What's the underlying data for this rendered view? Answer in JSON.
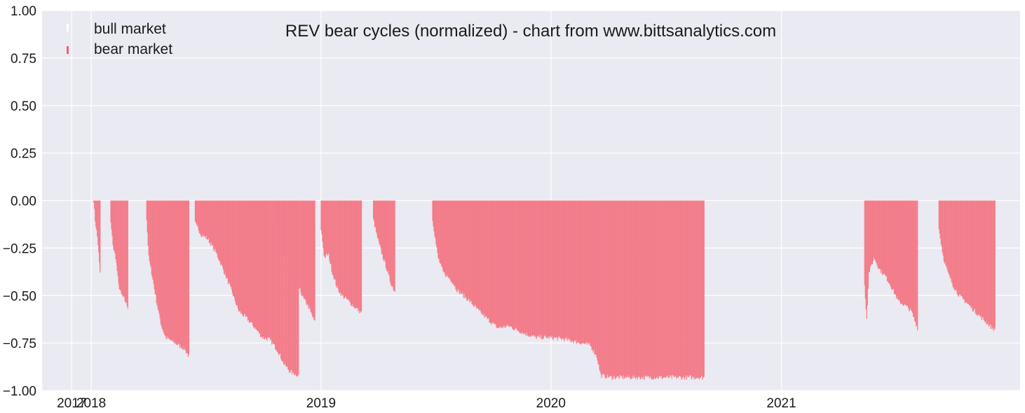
{
  "chart_data": {
    "type": "bar",
    "title": "REV bear cycles (normalized)  - chart from www.bittsanalytics.com",
    "xlabel": "",
    "ylabel": "",
    "ylim": [
      -1.0,
      1.0
    ],
    "xlim": [
      "2017-10-15",
      "2022-01-15"
    ],
    "grid": true,
    "legend_position": "top-left",
    "yticks": [
      {
        "value": 1.0,
        "label": "1.00"
      },
      {
        "value": 0.75,
        "label": "0.75"
      },
      {
        "value": 0.5,
        "label": "0.50"
      },
      {
        "value": 0.25,
        "label": "0.25"
      },
      {
        "value": 0.0,
        "label": "0.00"
      },
      {
        "value": -0.25,
        "label": "−0.25"
      },
      {
        "value": -0.5,
        "label": "−0.50"
      },
      {
        "value": -0.75,
        "label": "−0.75"
      },
      {
        "value": -1.0,
        "label": "−1.00"
      }
    ],
    "xticks": [
      {
        "date": "2017-12-01",
        "label": "2017"
      },
      {
        "date": "2018-01-01",
        "label": "2018"
      },
      {
        "date": "2019-01-01",
        "label": "2019"
      },
      {
        "date": "2020-01-01",
        "label": "2020"
      },
      {
        "date": "2021-01-01",
        "label": "2021"
      }
    ],
    "legend": [
      {
        "label": "bull market",
        "color": "#ffffff"
      },
      {
        "label": "bear market",
        "color": "#f0606e"
      }
    ],
    "colors": {
      "bear": "#f47f8d",
      "bear_edge": "#e8707c",
      "background": "#eaeaf2",
      "grid": "#ffffff"
    },
    "series": [
      {
        "name": "bear market",
        "points": [
          [
            "2018-01-05",
            0.0
          ],
          [
            "2018-01-06",
            -0.1
          ],
          [
            "2018-01-10",
            -0.2
          ],
          [
            "2018-01-15",
            -0.38
          ],
          [
            "2018-01-12",
            -0.38
          ],
          [
            "2018-02-01",
            -0.2
          ],
          [
            "2018-02-03",
            -0.25
          ],
          [
            "2018-02-06",
            -0.3
          ],
          [
            "2018-02-10",
            -0.44
          ],
          [
            "2018-02-15",
            -0.49
          ],
          [
            "2018-02-22",
            -0.52
          ],
          [
            "2018-02-28",
            -0.56
          ],
          [
            "2018-03-30",
            -0.15
          ],
          [
            "2018-04-03",
            -0.3
          ],
          [
            "2018-04-08",
            -0.4
          ],
          [
            "2018-04-15",
            -0.52
          ],
          [
            "2018-04-22",
            -0.63
          ],
          [
            "2018-04-28",
            -0.72
          ],
          [
            "2018-05-05",
            -0.74
          ],
          [
            "2018-05-15",
            -0.76
          ],
          [
            "2018-05-25",
            -0.78
          ],
          [
            "2018-06-05",
            -0.82
          ],
          [
            "2018-06-15",
            -0.15
          ],
          [
            "2018-06-25",
            -0.19
          ],
          [
            "2018-07-05",
            -0.2
          ],
          [
            "2018-07-15",
            -0.27
          ],
          [
            "2018-07-25",
            -0.35
          ],
          [
            "2018-08-05",
            -0.47
          ],
          [
            "2018-08-15",
            -0.58
          ],
          [
            "2018-08-25",
            -0.62
          ],
          [
            "2018-09-05",
            -0.67
          ],
          [
            "2018-09-15",
            -0.72
          ],
          [
            "2018-09-25",
            -0.72
          ],
          [
            "2018-10-05",
            -0.75
          ],
          [
            "2018-10-15",
            -0.82
          ],
          [
            "2018-10-25",
            -0.87
          ],
          [
            "2018-11-05",
            -0.91
          ],
          [
            "2018-11-15",
            -0.89
          ],
          [
            "2018-11-26",
            -0.92
          ],
          [
            "2018-10-21",
            -0.12
          ],
          [
            "2018-10-28",
            -0.22
          ],
          [
            "2018-11-04",
            -0.33
          ],
          [
            "2018-11-11",
            -0.38
          ],
          [
            "2018-11-18",
            -0.45
          ],
          [
            "2018-11-25",
            -0.47
          ],
          [
            "2018-12-02",
            -0.52
          ],
          [
            "2018-12-09",
            -0.55
          ],
          [
            "2018-12-16",
            -0.6
          ],
          [
            "2018-12-22",
            -0.64
          ],
          [
            "2019-01-01",
            -0.2
          ],
          [
            "2019-01-06",
            -0.3
          ],
          [
            "2019-01-12",
            -0.28
          ],
          [
            "2019-01-19",
            -0.38
          ],
          [
            "2019-01-26",
            -0.46
          ],
          [
            "2019-02-03",
            -0.5
          ],
          [
            "2019-02-10",
            -0.52
          ],
          [
            "2019-02-18",
            -0.55
          ],
          [
            "2019-02-25",
            -0.57
          ],
          [
            "2019-03-06",
            -0.59
          ],
          [
            "2019-03-25",
            -0.13
          ],
          [
            "2019-04-01",
            -0.2
          ],
          [
            "2019-04-08",
            -0.28
          ],
          [
            "2019-04-15",
            -0.35
          ],
          [
            "2019-04-22",
            -0.43
          ],
          [
            "2019-04-28",
            -0.48
          ],
          [
            "2019-06-27",
            -0.15
          ],
          [
            "2019-07-05",
            -0.3
          ],
          [
            "2019-07-15",
            -0.38
          ],
          [
            "2019-07-25",
            -0.42
          ],
          [
            "2019-08-05",
            -0.47
          ],
          [
            "2019-08-20",
            -0.52
          ],
          [
            "2019-09-05",
            -0.58
          ],
          [
            "2019-09-20",
            -0.62
          ],
          [
            "2019-10-05",
            -0.67
          ],
          [
            "2019-10-25",
            -0.66
          ],
          [
            "2019-11-15",
            -0.7
          ],
          [
            "2019-12-05",
            -0.72
          ],
          [
            "2019-12-25",
            -0.72
          ],
          [
            "2020-01-20",
            -0.73
          ],
          [
            "2020-02-10",
            -0.75
          ],
          [
            "2020-02-25",
            -0.76
          ],
          [
            "2020-03-08",
            -0.82
          ],
          [
            "2020-03-14",
            -0.92
          ],
          [
            "2020-04-01",
            -0.93
          ],
          [
            "2020-05-01",
            -0.93
          ],
          [
            "2020-06-01",
            -0.93
          ],
          [
            "2020-07-01",
            -0.93
          ],
          [
            "2020-08-01",
            -0.93
          ],
          [
            "2020-08-31",
            -0.93
          ],
          [
            "2021-05-13",
            -0.45
          ],
          [
            "2021-05-16",
            -0.62
          ],
          [
            "2021-05-20",
            -0.38
          ],
          [
            "2021-05-28",
            -0.3
          ],
          [
            "2021-06-05",
            -0.36
          ],
          [
            "2021-06-15",
            -0.4
          ],
          [
            "2021-06-25",
            -0.46
          ],
          [
            "2021-07-05",
            -0.53
          ],
          [
            "2021-07-15",
            -0.55
          ],
          [
            "2021-07-25",
            -0.58
          ],
          [
            "2021-08-05",
            -0.67
          ],
          [
            "2021-09-08",
            -0.18
          ],
          [
            "2021-09-15",
            -0.3
          ],
          [
            "2021-09-22",
            -0.38
          ],
          [
            "2021-10-01",
            -0.45
          ],
          [
            "2021-10-10",
            -0.5
          ],
          [
            "2021-10-20",
            -0.53
          ],
          [
            "2021-11-01",
            -0.57
          ],
          [
            "2021-11-10",
            -0.6
          ],
          [
            "2021-11-20",
            -0.63
          ],
          [
            "2021-11-29",
            -0.66
          ],
          [
            "2021-12-06",
            -0.68
          ]
        ]
      }
    ],
    "segments": [
      {
        "start": "2018-01-05",
        "end": "2018-01-15",
        "depth": [
          [
            0,
            0.0
          ],
          [
            0.2,
            -0.1
          ],
          [
            0.6,
            -0.2
          ],
          [
            1.0,
            -0.38
          ]
        ]
      },
      {
        "start": "2018-02-01",
        "end": "2018-02-28",
        "depth": [
          [
            0,
            -0.12
          ],
          [
            0.15,
            -0.25
          ],
          [
            0.3,
            -0.3
          ],
          [
            0.45,
            -0.44
          ],
          [
            0.6,
            -0.49
          ],
          [
            0.8,
            -0.52
          ],
          [
            1.0,
            -0.56
          ]
        ]
      },
      {
        "start": "2018-03-30",
        "end": "2018-06-05",
        "depth": [
          [
            0,
            -0.1
          ],
          [
            0.05,
            -0.3
          ],
          [
            0.15,
            -0.42
          ],
          [
            0.25,
            -0.55
          ],
          [
            0.35,
            -0.66
          ],
          [
            0.45,
            -0.72
          ],
          [
            0.6,
            -0.74
          ],
          [
            0.75,
            -0.76
          ],
          [
            0.9,
            -0.78
          ],
          [
            1.0,
            -0.82
          ]
        ]
      },
      {
        "start": "2018-06-15",
        "end": "2018-11-26",
        "depth": [
          [
            0,
            -0.12
          ],
          [
            0.06,
            -0.18
          ],
          [
            0.12,
            -0.2
          ],
          [
            0.2,
            -0.27
          ],
          [
            0.27,
            -0.36
          ],
          [
            0.35,
            -0.47
          ],
          [
            0.42,
            -0.58
          ],
          [
            0.5,
            -0.62
          ],
          [
            0.58,
            -0.67
          ],
          [
            0.65,
            -0.72
          ],
          [
            0.72,
            -0.73
          ],
          [
            0.8,
            -0.79
          ],
          [
            0.86,
            -0.86
          ],
          [
            0.92,
            -0.9
          ],
          [
            1.0,
            -0.92
          ]
        ]
      },
      {
        "start": "2018-10-21",
        "end": "2018-12-22",
        "depth": [
          [
            0,
            -0.1
          ],
          [
            0.12,
            -0.22
          ],
          [
            0.25,
            -0.33
          ],
          [
            0.37,
            -0.38
          ],
          [
            0.5,
            -0.45
          ],
          [
            0.62,
            -0.47
          ],
          [
            0.72,
            -0.52
          ],
          [
            0.82,
            -0.55
          ],
          [
            0.92,
            -0.6
          ],
          [
            1.0,
            -0.64
          ]
        ]
      },
      {
        "start": "2019-01-01",
        "end": "2019-03-06",
        "depth": [
          [
            0,
            -0.15
          ],
          [
            0.08,
            -0.3
          ],
          [
            0.18,
            -0.28
          ],
          [
            0.28,
            -0.38
          ],
          [
            0.4,
            -0.46
          ],
          [
            0.52,
            -0.5
          ],
          [
            0.64,
            -0.52
          ],
          [
            0.78,
            -0.55
          ],
          [
            0.88,
            -0.57
          ],
          [
            1.0,
            -0.59
          ]
        ]
      },
      {
        "start": "2019-03-25",
        "end": "2019-04-28",
        "depth": [
          [
            0,
            -0.1
          ],
          [
            0.2,
            -0.2
          ],
          [
            0.4,
            -0.28
          ],
          [
            0.6,
            -0.35
          ],
          [
            0.8,
            -0.43
          ],
          [
            1.0,
            -0.48
          ]
        ]
      },
      {
        "start": "2019-06-27",
        "end": "2020-08-31",
        "depth": [
          [
            0,
            -0.1
          ],
          [
            0.02,
            -0.3
          ],
          [
            0.04,
            -0.38
          ],
          [
            0.07,
            -0.42
          ],
          [
            0.09,
            -0.47
          ],
          [
            0.13,
            -0.52
          ],
          [
            0.17,
            -0.58
          ],
          [
            0.2,
            -0.62
          ],
          [
            0.24,
            -0.67
          ],
          [
            0.28,
            -0.66
          ],
          [
            0.34,
            -0.7
          ],
          [
            0.38,
            -0.72
          ],
          [
            0.43,
            -0.72
          ],
          [
            0.49,
            -0.73
          ],
          [
            0.55,
            -0.75
          ],
          [
            0.58,
            -0.76
          ],
          [
            0.605,
            -0.82
          ],
          [
            0.62,
            -0.92
          ],
          [
            0.66,
            -0.93
          ],
          [
            1.0,
            -0.93
          ]
        ]
      },
      {
        "start": "2021-05-13",
        "end": "2021-08-05",
        "depth": [
          [
            0,
            -0.45
          ],
          [
            0.04,
            -0.62
          ],
          [
            0.08,
            -0.38
          ],
          [
            0.18,
            -0.3
          ],
          [
            0.28,
            -0.36
          ],
          [
            0.4,
            -0.4
          ],
          [
            0.52,
            -0.46
          ],
          [
            0.64,
            -0.53
          ],
          [
            0.76,
            -0.55
          ],
          [
            0.88,
            -0.58
          ],
          [
            1.0,
            -0.67
          ]
        ]
      },
      {
        "start": "2021-09-08",
        "end": "2021-12-06",
        "depth": [
          [
            0,
            -0.15
          ],
          [
            0.08,
            -0.3
          ],
          [
            0.16,
            -0.38
          ],
          [
            0.26,
            -0.45
          ],
          [
            0.36,
            -0.5
          ],
          [
            0.47,
            -0.53
          ],
          [
            0.6,
            -0.57
          ],
          [
            0.7,
            -0.6
          ],
          [
            0.81,
            -0.63
          ],
          [
            0.91,
            -0.66
          ],
          [
            1.0,
            -0.68
          ]
        ]
      }
    ]
  }
}
